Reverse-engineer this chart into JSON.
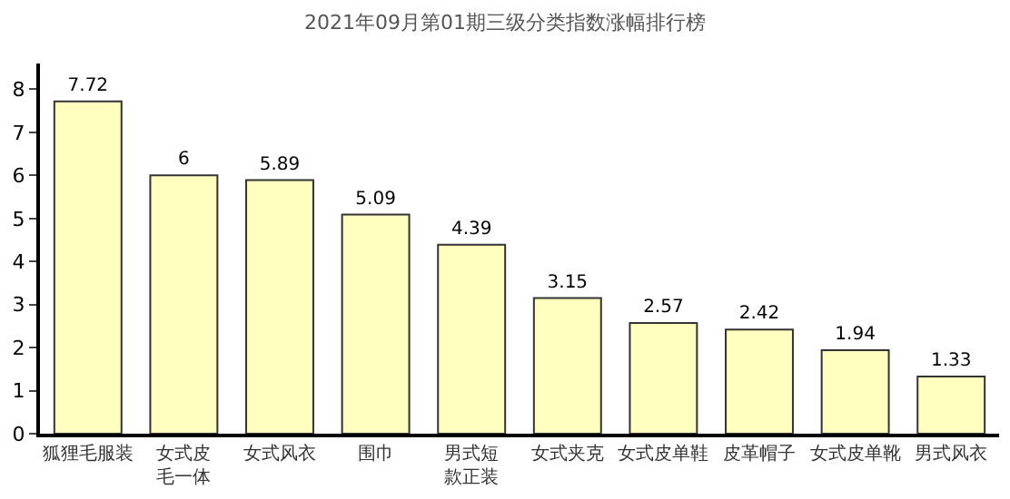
{
  "chart_data": {
    "type": "bar",
    "title": "2021年09月第01期三级分类指数涨幅排行榜",
    "categories": [
      "狐狸毛服装",
      "女式皮毛一体",
      "女式风衣",
      "围巾",
      "男式短款正装",
      "女式夹克",
      "女式皮单鞋",
      "皮革帽子",
      "女式皮单靴",
      "男式风衣"
    ],
    "values": [
      7.72,
      6,
      5.89,
      5.09,
      4.39,
      3.15,
      2.57,
      2.42,
      1.94,
      1.33
    ],
    "color": "#ffffc0",
    "ylim": [
      0,
      8.6
    ],
    "yticks": [
      0,
      1,
      2,
      3,
      4,
      5,
      6,
      7,
      8
    ],
    "data_labels": true
  }
}
